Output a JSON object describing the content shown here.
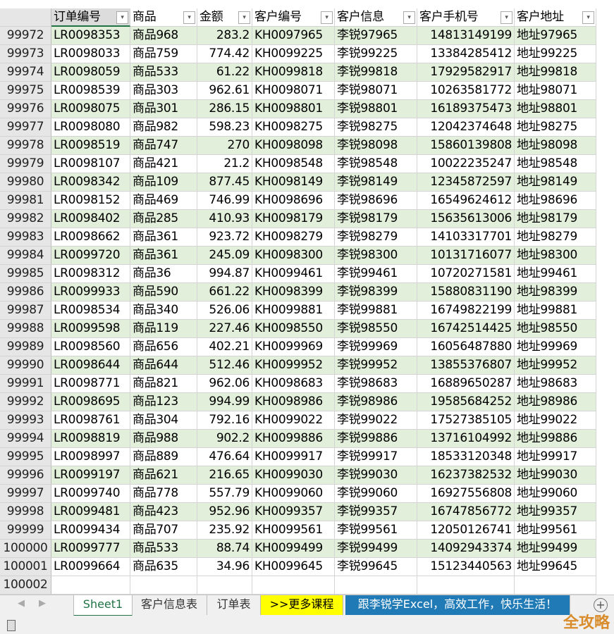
{
  "columns": [
    "订单编号",
    "商品",
    "金额",
    "客户编号",
    "客户信息",
    "客户手机号",
    "客户地址"
  ],
  "rows": [
    [
      "99972",
      "LR0098353",
      "商品968",
      "283.2",
      "KH0097965",
      "李锐97965",
      "14813149199",
      "地址97965"
    ],
    [
      "99973",
      "LR0098033",
      "商品759",
      "774.42",
      "KH0099225",
      "李锐99225",
      "13384285412",
      "地址99225"
    ],
    [
      "99974",
      "LR0098059",
      "商品533",
      "61.22",
      "KH0099818",
      "李锐99818",
      "17929582917",
      "地址99818"
    ],
    [
      "99975",
      "LR0098539",
      "商品303",
      "962.61",
      "KH0098071",
      "李锐98071",
      "10263581772",
      "地址98071"
    ],
    [
      "99976",
      "LR0098075",
      "商品301",
      "286.15",
      "KH0098801",
      "李锐98801",
      "16189375473",
      "地址98801"
    ],
    [
      "99977",
      "LR0098080",
      "商品982",
      "598.23",
      "KH0098275",
      "李锐98275",
      "12042374648",
      "地址98275"
    ],
    [
      "99978",
      "LR0098519",
      "商品747",
      "270",
      "KH0098098",
      "李锐98098",
      "15860139808",
      "地址98098"
    ],
    [
      "99979",
      "LR0098107",
      "商品421",
      "21.2",
      "KH0098548",
      "李锐98548",
      "10022235247",
      "地址98548"
    ],
    [
      "99980",
      "LR0098342",
      "商品109",
      "877.45",
      "KH0098149",
      "李锐98149",
      "12345872597",
      "地址98149"
    ],
    [
      "99981",
      "LR0098152",
      "商品469",
      "746.99",
      "KH0098696",
      "李锐98696",
      "16549624612",
      "地址98696"
    ],
    [
      "99982",
      "LR0098402",
      "商品285",
      "410.93",
      "KH0098179",
      "李锐98179",
      "15635613006",
      "地址98179"
    ],
    [
      "99983",
      "LR0098662",
      "商品361",
      "923.72",
      "KH0098279",
      "李锐98279",
      "14103317701",
      "地址98279"
    ],
    [
      "99984",
      "LR0099720",
      "商品361",
      "245.09",
      "KH0098300",
      "李锐98300",
      "10131716077",
      "地址98300"
    ],
    [
      "99985",
      "LR0098312",
      "商品36",
      "994.87",
      "KH0099461",
      "李锐99461",
      "10720271581",
      "地址99461"
    ],
    [
      "99986",
      "LR0099933",
      "商品590",
      "661.22",
      "KH0098399",
      "李锐98399",
      "15880831190",
      "地址98399"
    ],
    [
      "99987",
      "LR0098534",
      "商品340",
      "526.06",
      "KH0099881",
      "李锐99881",
      "16749822199",
      "地址99881"
    ],
    [
      "99988",
      "LR0099598",
      "商品119",
      "227.46",
      "KH0098550",
      "李锐98550",
      "16742514425",
      "地址98550"
    ],
    [
      "99989",
      "LR0098560",
      "商品656",
      "402.21",
      "KH0099969",
      "李锐99969",
      "16056487880",
      "地址99969"
    ],
    [
      "99990",
      "LR0098644",
      "商品644",
      "512.46",
      "KH0099952",
      "李锐99952",
      "13855376807",
      "地址99952"
    ],
    [
      "99991",
      "LR0098771",
      "商品821",
      "962.06",
      "KH0098683",
      "李锐98683",
      "16889650287",
      "地址98683"
    ],
    [
      "99992",
      "LR0098695",
      "商品123",
      "994.99",
      "KH0098986",
      "李锐98986",
      "19585684252",
      "地址98986"
    ],
    [
      "99993",
      "LR0098761",
      "商品304",
      "792.16",
      "KH0099022",
      "李锐99022",
      "17527385105",
      "地址99022"
    ],
    [
      "99994",
      "LR0098819",
      "商品988",
      "902.2",
      "KH0099886",
      "李锐99886",
      "13716104992",
      "地址99886"
    ],
    [
      "99995",
      "LR0098997",
      "商品889",
      "476.64",
      "KH0099917",
      "李锐99917",
      "18533120348",
      "地址99917"
    ],
    [
      "99996",
      "LR0099197",
      "商品621",
      "216.65",
      "KH0099030",
      "李锐99030",
      "16237382532",
      "地址99030"
    ],
    [
      "99997",
      "LR0099740",
      "商品778",
      "557.79",
      "KH0099060",
      "李锐99060",
      "16927556808",
      "地址99060"
    ],
    [
      "99998",
      "LR0099481",
      "商品423",
      "952.96",
      "KH0099357",
      "李锐99357",
      "16747856772",
      "地址99357"
    ],
    [
      "99999",
      "LR0099434",
      "商品707",
      "235.92",
      "KH0099561",
      "李锐99561",
      "12050126741",
      "地址99561"
    ],
    [
      "100000",
      "LR0099777",
      "商品533",
      "88.74",
      "KH0099499",
      "李锐99499",
      "14092943374",
      "地址99499"
    ],
    [
      "100001",
      "LR0099664",
      "商品635",
      "34.96",
      "KH0099645",
      "李锐99645",
      "15123440563",
      "地址99645"
    ]
  ],
  "empty_row": "100002",
  "tabs": {
    "sheet1": "Sheet1",
    "customer": "客户信息表",
    "orders": "订单表",
    "more": ">>更多课程",
    "promo": "跟李锐学Excel，高效工作，快乐生活！"
  },
  "watermark": "全攻略",
  "colors": {
    "band": "#e2efda",
    "accent": "#217346",
    "more_tab": "#ffff00",
    "promo_tab": "#1f7ab5"
  }
}
